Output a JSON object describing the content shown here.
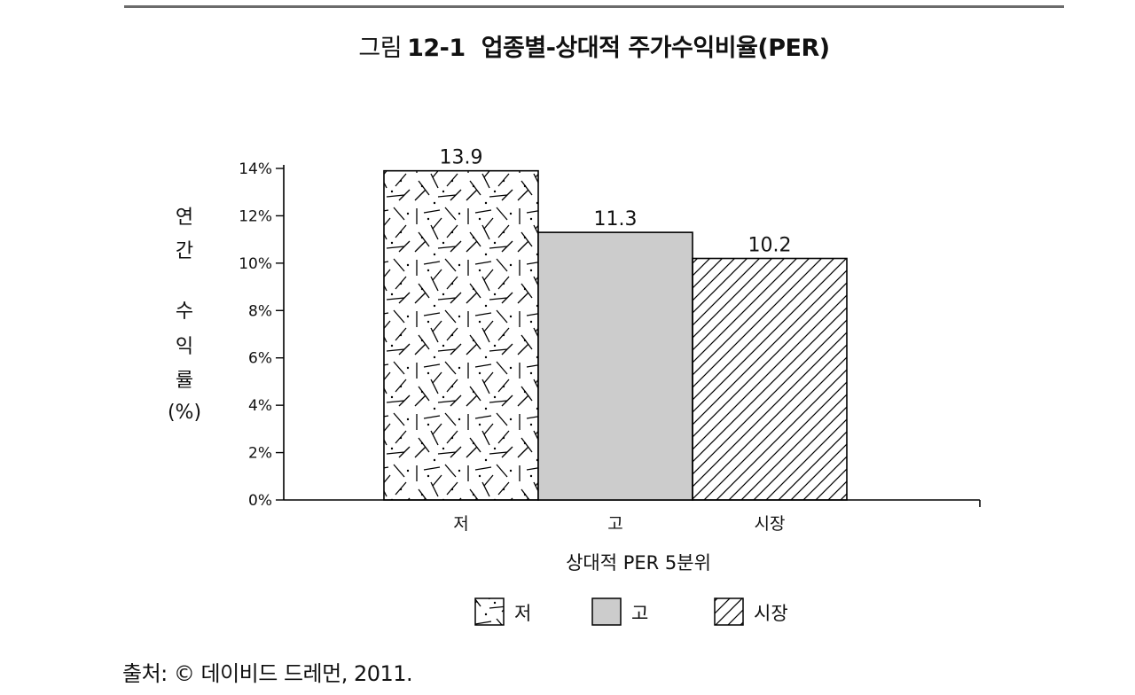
{
  "figure": {
    "label": "그림",
    "number": "12-1",
    "title": "업종별-상대적 주가수익비율(PER)"
  },
  "chart_data": {
    "type": "bar",
    "categories": [
      "저",
      "고",
      "시장"
    ],
    "values": [
      13.9,
      11.3,
      10.2
    ],
    "value_labels": [
      "13.9",
      "11.3",
      "10.2"
    ],
    "xlabel": "상대적 PER 5분위",
    "ylabel_chars": [
      "연",
      "간",
      "수",
      "익",
      "률",
      "(%)"
    ],
    "yticks": [
      "0%",
      "2%",
      "4%",
      "6%",
      "8%",
      "10%",
      "12%",
      "14%"
    ],
    "ylim": [
      0,
      14
    ],
    "grid": false,
    "legend": {
      "placement": "bottom-center",
      "entries": [
        "저",
        "고",
        "시장"
      ]
    },
    "fills": [
      "random-dash-dot",
      "#cccccc",
      "diagonal-hatch"
    ]
  },
  "source": "출처: © 데이비드 드레먼, 2011."
}
